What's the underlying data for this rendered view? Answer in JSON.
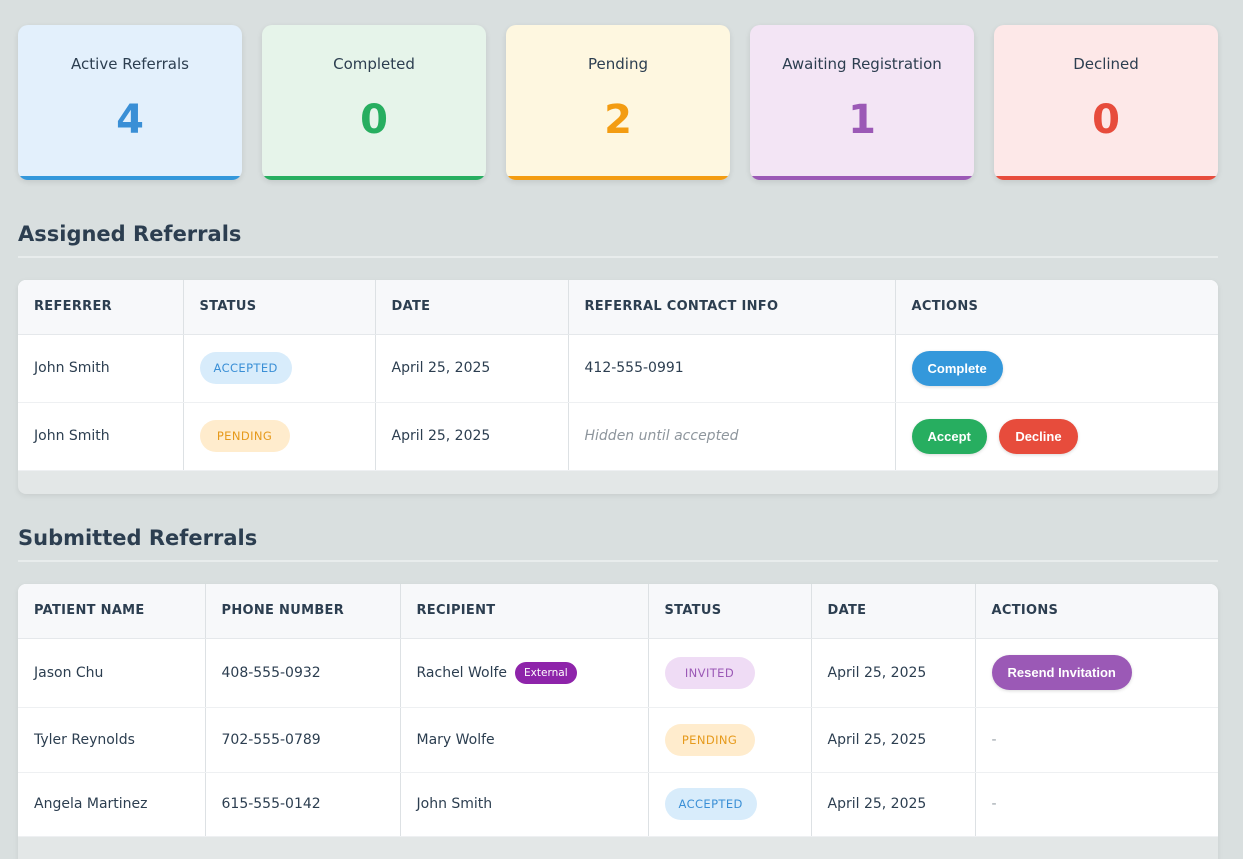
{
  "stats": [
    {
      "label": "Active Referrals",
      "value": "4",
      "bg": "#e3f0fc",
      "color": "#3a8fd6",
      "bar": "#3498db"
    },
    {
      "label": "Completed",
      "value": "0",
      "bg": "#e6f4ea",
      "color": "#27ae60",
      "bar": "#27ae60"
    },
    {
      "label": "Pending",
      "value": "2",
      "bg": "#fef7e0",
      "color": "#f39c12",
      "bar": "#f39c12"
    },
    {
      "label": "Awaiting Registration",
      "value": "1",
      "bg": "#f3e5f5",
      "color": "#9b59b6",
      "bar": "#9b59b6"
    },
    {
      "label": "Declined",
      "value": "0",
      "bg": "#fde8e8",
      "color": "#e74c3c",
      "bar": "#e74c3c"
    }
  ],
  "assigned": {
    "title": "Assigned Referrals",
    "headers": [
      "REFERRER",
      "STATUS",
      "DATE",
      "REFERRAL CONTACT INFO",
      "ACTIONS"
    ],
    "rows": [
      {
        "referrer": "John Smith",
        "status": "ACCEPTED",
        "date": "April 25, 2025",
        "contact": "412-555-0991",
        "actions": [
          "Complete"
        ]
      },
      {
        "referrer": "John Smith",
        "status": "PENDING",
        "date": "April 25, 2025",
        "contact": "Hidden until accepted",
        "actions": [
          "Accept",
          "Decline"
        ]
      }
    ]
  },
  "submitted": {
    "title": "Submitted Referrals",
    "headers": [
      "PATIENT NAME",
      "PHONE NUMBER",
      "RECIPIENT",
      "STATUS",
      "DATE",
      "ACTIONS"
    ],
    "rows": [
      {
        "patient": "Jason Chu",
        "phone": "408-555-0932",
        "recipient": "Rachel Wolfe",
        "tag": "External",
        "status": "INVITED",
        "date": "April 25, 2025",
        "action": "Resend Invitation"
      },
      {
        "patient": "Tyler Reynolds",
        "phone": "702-555-0789",
        "recipient": "Mary Wolfe",
        "status": "PENDING",
        "date": "April 25, 2025",
        "action": "-"
      },
      {
        "patient": "Angela Martinez",
        "phone": "615-555-0142",
        "recipient": "John Smith",
        "status": "ACCEPTED",
        "date": "April 25, 2025",
        "action": "-"
      }
    ]
  }
}
